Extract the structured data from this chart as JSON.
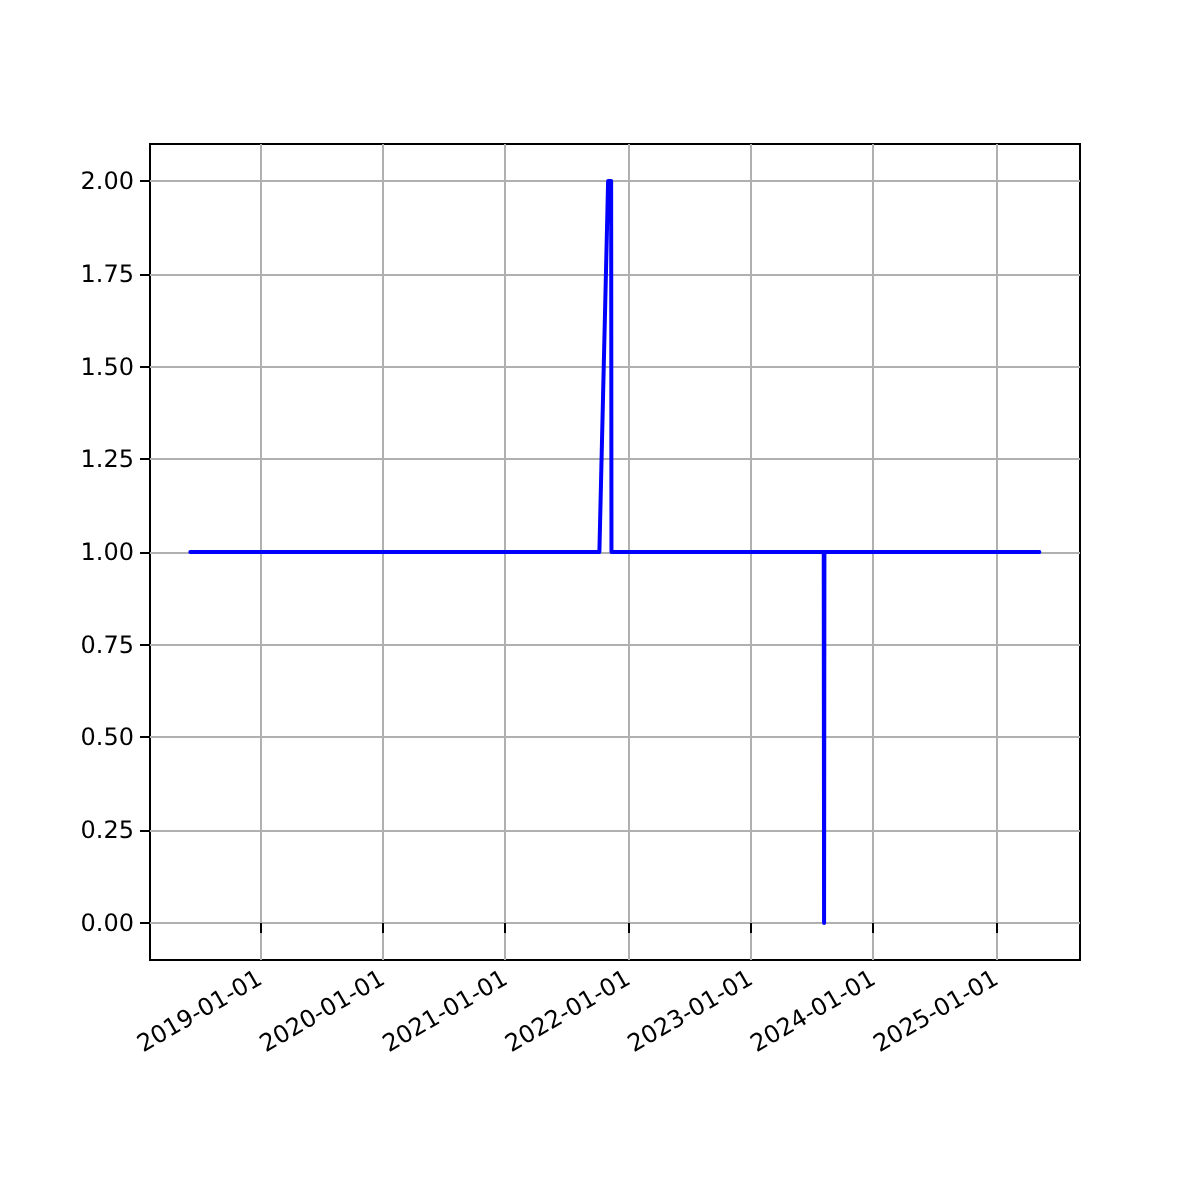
{
  "chart_data": {
    "type": "line",
    "x": [
      "2018-06-08",
      "2021-10-08",
      "2021-11-03",
      "2021-11-12",
      "2021-11-13",
      "2023-08-07",
      "2023-08-08",
      "2023-08-09",
      "2025-05-10"
    ],
    "series": [
      {
        "color": "#0000ff",
        "values": [
          1,
          1,
          2,
          2,
          1,
          1,
          0,
          1,
          1
        ]
      }
    ],
    "xlim": [
      "2018-02-08",
      "2025-09-08"
    ],
    "xticks": [
      "2019-01-01",
      "2020-01-01",
      "2021-01-01",
      "2022-01-01",
      "2023-01-01",
      "2024-01-01",
      "2025-01-01"
    ],
    "ylim": [
      -0.1,
      2.1
    ],
    "yticks": [
      {
        "value": 0,
        "label": "0.00"
      },
      {
        "value": 0.25,
        "label": "0.25"
      },
      {
        "value": 0.5,
        "label": "0.50"
      },
      {
        "value": 0.75,
        "label": "0.75"
      },
      {
        "value": 1,
        "label": "1.00"
      },
      {
        "value": 1.25,
        "label": "1.25"
      },
      {
        "value": 1.5,
        "label": "1.50"
      },
      {
        "value": 1.75,
        "label": "1.75"
      },
      {
        "value": 2,
        "label": "2.00"
      }
    ],
    "grid": true,
    "line_style": "solid",
    "marker": "none"
  }
}
